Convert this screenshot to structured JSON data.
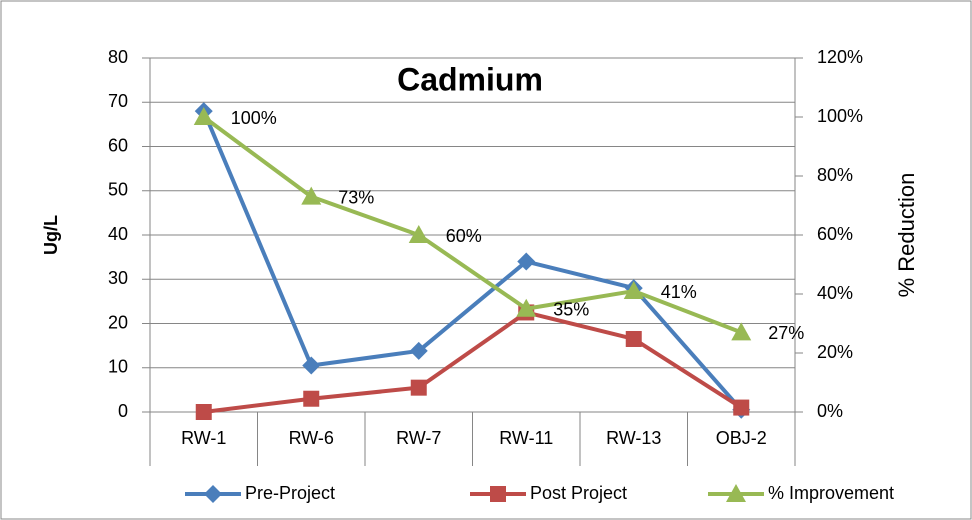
{
  "chart_data": {
    "type": "line",
    "title": "Cadmium",
    "y_label": "Ug/L",
    "y2_label": "% Reduction",
    "categories": [
      "RW-1",
      "RW-6",
      "RW-7",
      "RW-11",
      "RW-13",
      "OBJ-2"
    ],
    "series": [
      {
        "name": "Pre-Project",
        "color": "#4a7ebb",
        "marker": "diamond",
        "values": [
          68,
          10.5,
          13.8,
          34,
          28,
          0.5
        ]
      },
      {
        "name": "Post Project",
        "color": "#be4b48",
        "marker": "square",
        "values": [
          0,
          3,
          5.5,
          22.5,
          16.5,
          1
        ]
      },
      {
        "name": "% Improvement",
        "color": "#98b954",
        "marker": "triangle",
        "axis": "y2",
        "values": [
          100,
          73,
          60,
          35,
          41,
          27
        ],
        "value_labels": [
          "100%",
          "73%",
          "60%",
          "35%",
          "41%",
          "27%"
        ]
      }
    ],
    "ylim": [
      0,
      80
    ],
    "yticks": [
      0,
      10,
      20,
      30,
      40,
      50,
      60,
      70,
      80
    ],
    "y2lim": [
      0,
      120
    ],
    "y2ticks": [
      {
        "value": 0,
        "label": "0%"
      },
      {
        "value": 20,
        "label": "20%"
      },
      {
        "value": 40,
        "label": "40%"
      },
      {
        "value": 60,
        "label": "60%"
      },
      {
        "value": 80,
        "label": "80%"
      },
      {
        "value": 100,
        "label": "100%"
      },
      {
        "value": 120,
        "label": "120%"
      }
    ],
    "grid": true,
    "legend": "bottom"
  }
}
